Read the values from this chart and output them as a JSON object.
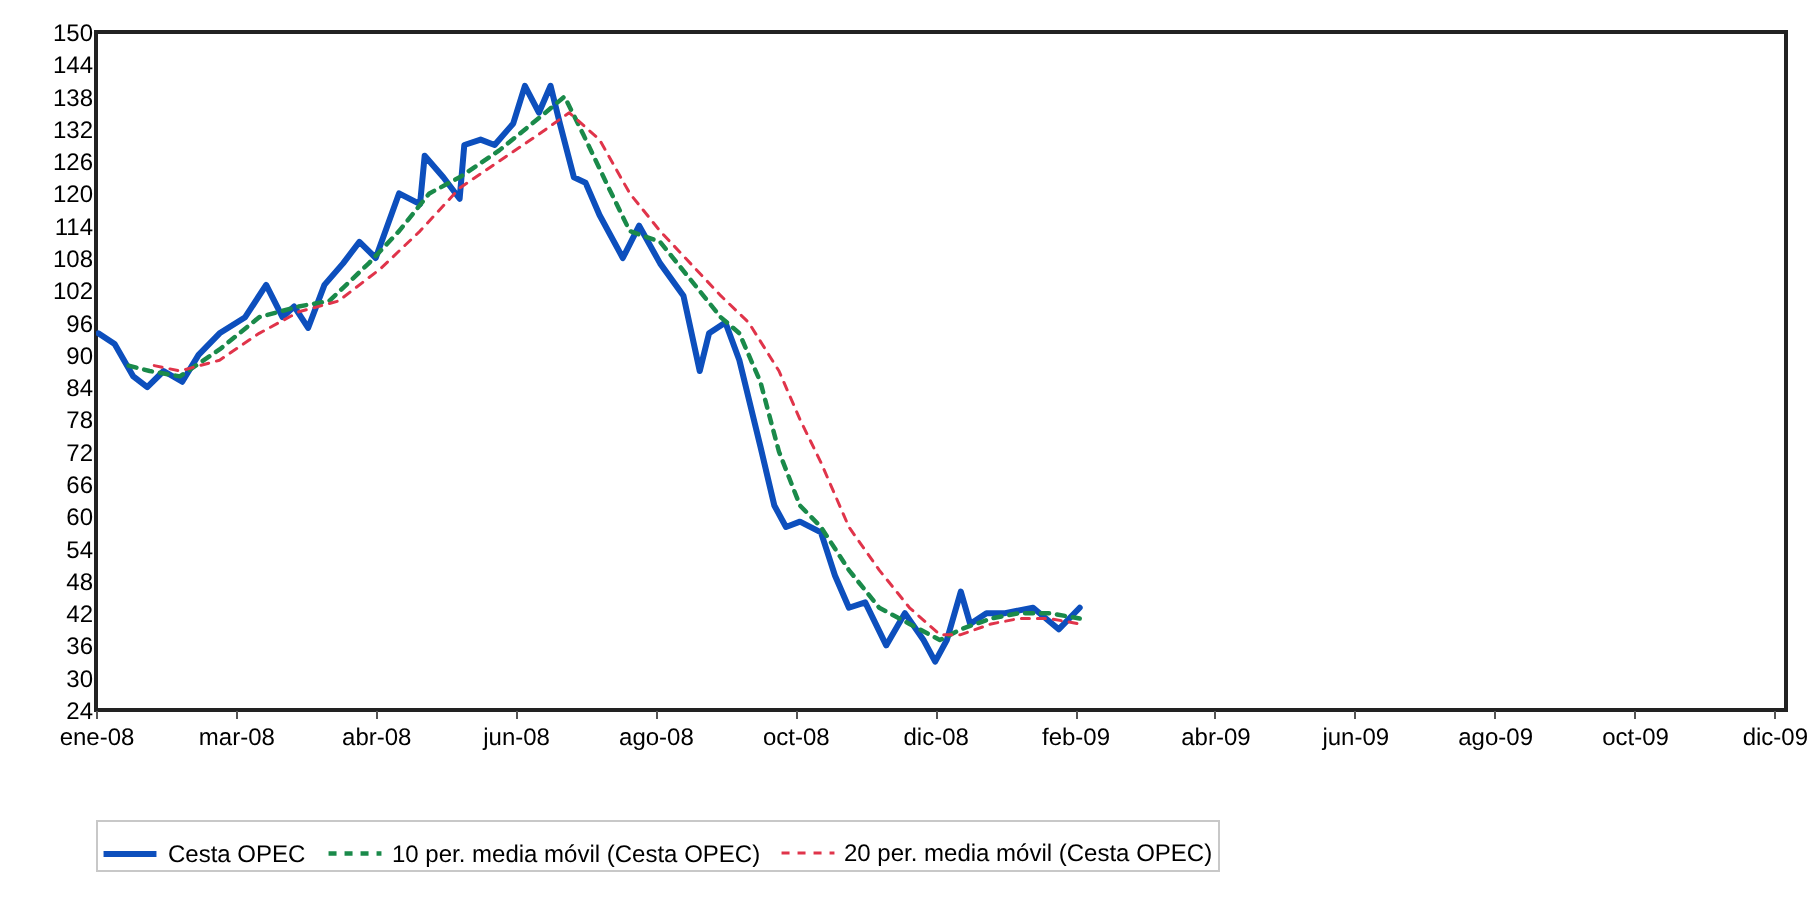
{
  "chart_data": {
    "type": "line",
    "xlim": [
      "2008-01-01",
      "2009-12-26"
    ],
    "xticks": [
      {
        "value": "2008-01-01",
        "label": "ene-08"
      },
      {
        "value": "2008-03-01",
        "label": "mar-08"
      },
      {
        "value": "2008-04-30",
        "label": "abr-08"
      },
      {
        "value": "2008-06-29",
        "label": "jun-08"
      },
      {
        "value": "2008-08-28",
        "label": "ago-08"
      },
      {
        "value": "2008-10-27",
        "label": "oct-08"
      },
      {
        "value": "2008-12-26",
        "label": "dic-08"
      },
      {
        "value": "2009-02-24",
        "label": "feb-09"
      },
      {
        "value": "2009-04-25",
        "label": "abr-09"
      },
      {
        "value": "2009-06-24",
        "label": "jun-09"
      },
      {
        "value": "2009-08-23",
        "label": "ago-09"
      },
      {
        "value": "2009-10-22",
        "label": "oct-09"
      },
      {
        "value": "2009-12-21",
        "label": "dic-09"
      }
    ],
    "ylim": [
      24,
      150
    ],
    "yticks": [
      24,
      30,
      36,
      42,
      48,
      54,
      60,
      66,
      72,
      78,
      84,
      90,
      96,
      102,
      108,
      114,
      120,
      126,
      132,
      138,
      144,
      150
    ],
    "grid": false,
    "legend": "bottom",
    "series": [
      {
        "name": "Cesta OPEC",
        "color": "#0d4fbd",
        "line_style": "solid",
        "x": [
          "2008-01-02",
          "2008-01-09",
          "2008-01-17",
          "2008-01-23",
          "2008-01-30",
          "2008-02-07",
          "2008-02-14",
          "2008-02-23",
          "2008-03-05",
          "2008-03-14",
          "2008-03-21",
          "2008-03-26",
          "2008-04-01",
          "2008-04-08",
          "2008-04-16",
          "2008-04-23",
          "2008-04-30",
          "2008-05-10",
          "2008-05-19",
          "2008-05-21",
          "2008-05-29",
          "2008-06-05",
          "2008-06-07",
          "2008-06-14",
          "2008-06-20",
          "2008-06-28",
          "2008-07-03",
          "2008-07-09",
          "2008-07-14",
          "2008-07-18",
          "2008-07-24",
          "2008-07-29",
          "2008-08-04",
          "2008-08-14",
          "2008-08-21",
          "2008-08-30",
          "2008-09-09",
          "2008-09-16",
          "2008-09-20",
          "2008-09-27",
          "2008-10-03",
          "2008-10-12",
          "2008-10-18",
          "2008-10-23",
          "2008-10-29",
          "2008-11-07",
          "2008-11-13",
          "2008-11-19",
          "2008-11-26",
          "2008-12-05",
          "2008-12-13",
          "2008-12-21",
          "2008-12-26",
          "2008-12-31",
          "2009-01-06",
          "2009-01-10",
          "2009-01-17",
          "2009-01-25",
          "2009-02-06",
          "2009-02-17",
          "2009-02-26"
        ],
        "values": [
          94,
          92,
          86,
          84,
          87,
          85,
          90,
          94,
          97,
          103,
          97,
          99,
          95,
          103,
          107,
          111,
          108,
          120,
          118,
          127,
          123,
          119,
          129,
          130,
          129,
          133,
          140,
          135,
          140,
          133,
          123,
          122,
          116,
          108,
          114,
          107,
          101,
          87,
          94,
          96,
          89,
          73,
          62,
          58,
          59,
          57,
          49,
          43,
          44,
          36,
          42,
          37,
          33,
          37,
          46,
          40,
          42,
          42,
          43,
          39,
          43
        ]
      },
      {
        "name": "10 per. media móvil (Cesta OPEC)",
        "color": "#1a8a4a",
        "line_style": "dashed",
        "x": [
          "2008-01-15",
          "2008-01-24",
          "2008-02-06",
          "2008-02-23",
          "2008-03-11",
          "2008-03-28",
          "2008-04-10",
          "2008-04-27",
          "2008-05-10",
          "2008-05-23",
          "2008-06-05",
          "2008-06-22",
          "2008-07-09",
          "2008-07-20",
          "2008-07-28",
          "2008-08-08",
          "2008-08-17",
          "2008-08-30",
          "2008-09-12",
          "2008-09-25",
          "2008-10-03",
          "2008-10-12",
          "2008-10-20",
          "2008-10-29",
          "2008-11-07",
          "2008-11-19",
          "2008-12-02",
          "2008-12-15",
          "2008-12-28",
          "2009-01-06",
          "2009-01-19",
          "2009-01-31",
          "2009-02-13",
          "2009-02-26"
        ],
        "values": [
          88,
          87,
          86,
          91,
          97,
          99,
          100,
          107,
          113,
          120,
          123,
          128,
          134,
          138,
          131,
          121,
          113,
          111,
          104,
          97,
          94,
          85,
          72,
          62,
          58,
          50,
          43,
          40,
          37,
          39,
          41,
          42,
          42,
          41
        ]
      },
      {
        "name": "20 per. media móvil (Cesta OPEC)",
        "color": "#e0344a",
        "line_style": "dashed",
        "x": [
          "2008-01-26",
          "2008-02-06",
          "2008-02-23",
          "2008-03-11",
          "2008-03-28",
          "2008-04-14",
          "2008-05-02",
          "2008-05-19",
          "2008-06-05",
          "2008-06-22",
          "2008-07-09",
          "2008-07-22",
          "2008-08-04",
          "2008-08-17",
          "2008-08-30",
          "2008-09-12",
          "2008-09-25",
          "2008-10-07",
          "2008-10-20",
          "2008-10-29",
          "2008-11-07",
          "2008-11-19",
          "2008-12-02",
          "2008-12-15",
          "2008-12-28",
          "2009-01-06",
          "2009-01-19",
          "2009-01-31",
          "2009-02-13",
          "2009-02-26"
        ],
        "values": [
          88,
          87,
          89,
          94,
          98,
          100,
          106,
          113,
          121,
          126,
          131,
          135,
          130,
          120,
          113,
          107,
          101,
          96,
          87,
          78,
          70,
          58,
          50,
          43,
          38,
          38,
          40,
          41,
          41,
          40
        ]
      }
    ]
  }
}
